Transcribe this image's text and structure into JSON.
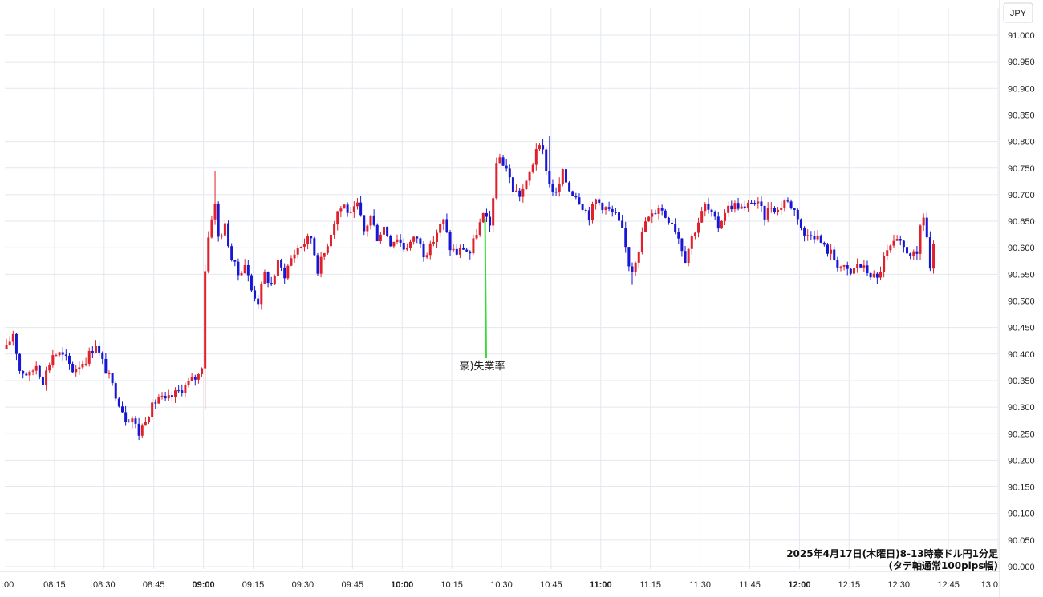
{
  "chart_data": {
    "type": "candlestick",
    "unit_label": "JPY",
    "ylim": [
      90.0,
      91.03
    ],
    "y_ticks": [
      "91.000",
      "90.950",
      "90.900",
      "90.850",
      "90.800",
      "90.750",
      "90.700",
      "90.650",
      "90.600",
      "90.550",
      "90.500",
      "90.450",
      "90.400",
      "90.350",
      "90.300",
      "90.250",
      "90.200",
      "90.150",
      "90.100",
      "90.050",
      "90.000"
    ],
    "x_ticks": [
      {
        "label": ":00",
        "minute": 480,
        "bold": false
      },
      {
        "label": "08:15",
        "minute": 495,
        "bold": false
      },
      {
        "label": "08:30",
        "minute": 510,
        "bold": false
      },
      {
        "label": "08:45",
        "minute": 525,
        "bold": false
      },
      {
        "label": "09:00",
        "minute": 540,
        "bold": true
      },
      {
        "label": "09:15",
        "minute": 555,
        "bold": false
      },
      {
        "label": "09:30",
        "minute": 570,
        "bold": false
      },
      {
        "label": "09:45",
        "minute": 585,
        "bold": false
      },
      {
        "label": "10:00",
        "minute": 600,
        "bold": true
      },
      {
        "label": "10:15",
        "minute": 615,
        "bold": false
      },
      {
        "label": "10:30",
        "minute": 630,
        "bold": false
      },
      {
        "label": "10:45",
        "minute": 645,
        "bold": false
      },
      {
        "label": "11:00",
        "minute": 660,
        "bold": true
      },
      {
        "label": "11:15",
        "minute": 675,
        "bold": false
      },
      {
        "label": "11:30",
        "minute": 690,
        "bold": false
      },
      {
        "label": "11:45",
        "minute": 705,
        "bold": false
      },
      {
        "label": "12:00",
        "minute": 720,
        "bold": true
      },
      {
        "label": "12:15",
        "minute": 735,
        "bold": false
      },
      {
        "label": "12:30",
        "minute": 750,
        "bold": false
      },
      {
        "label": "12:45",
        "minute": 765,
        "bold": false
      },
      {
        "label": "13:0",
        "minute": 780,
        "bold": false
      }
    ],
    "x_range_minutes": [
      480,
      780
    ],
    "anchors": [
      [
        480,
        90.41
      ],
      [
        482,
        90.44
      ],
      [
        484,
        90.37
      ],
      [
        487,
        90.36
      ],
      [
        489,
        90.38
      ],
      [
        491,
        90.35
      ],
      [
        494,
        90.4
      ],
      [
        496,
        90.4
      ],
      [
        498,
        90.39
      ],
      [
        500,
        90.37
      ],
      [
        502,
        90.38
      ],
      [
        504,
        90.39
      ],
      [
        507,
        90.42
      ],
      [
        508,
        90.4
      ],
      [
        510,
        90.37
      ],
      [
        512,
        90.34
      ],
      [
        514,
        90.31
      ],
      [
        516,
        90.28
      ],
      [
        518,
        90.28
      ],
      [
        520,
        90.25
      ],
      [
        522,
        90.28
      ],
      [
        524,
        90.3
      ],
      [
        526,
        90.32
      ],
      [
        528,
        90.31
      ],
      [
        530,
        90.32
      ],
      [
        532,
        90.33
      ],
      [
        534,
        90.34
      ],
      [
        536,
        90.35
      ],
      [
        538,
        90.36
      ],
      [
        539,
        90.38
      ],
      [
        540,
        90.56
      ],
      [
        541,
        90.62
      ],
      [
        542,
        90.66
      ],
      [
        543,
        90.68
      ],
      [
        544,
        90.62
      ],
      [
        546,
        90.64
      ],
      [
        548,
        90.58
      ],
      [
        550,
        90.55
      ],
      [
        552,
        90.57
      ],
      [
        554,
        90.52
      ],
      [
        556,
        90.5
      ],
      [
        558,
        90.55
      ],
      [
        560,
        90.53
      ],
      [
        562,
        90.57
      ],
      [
        564,
        90.55
      ],
      [
        566,
        90.58
      ],
      [
        568,
        90.6
      ],
      [
        570,
        90.61
      ],
      [
        572,
        90.62
      ],
      [
        574,
        90.56
      ],
      [
        576,
        90.59
      ],
      [
        578,
        90.63
      ],
      [
        580,
        90.67
      ],
      [
        582,
        90.68
      ],
      [
        584,
        90.66
      ],
      [
        586,
        90.68
      ],
      [
        588,
        90.63
      ],
      [
        590,
        90.66
      ],
      [
        592,
        90.62
      ],
      [
        594,
        90.64
      ],
      [
        596,
        90.61
      ],
      [
        598,
        90.62
      ],
      [
        600,
        90.6
      ],
      [
        602,
        90.61
      ],
      [
        604,
        90.62
      ],
      [
        606,
        90.59
      ],
      [
        608,
        90.6
      ],
      [
        610,
        90.63
      ],
      [
        612,
        90.65
      ],
      [
        614,
        90.6
      ],
      [
        616,
        90.59
      ],
      [
        618,
        90.6
      ],
      [
        620,
        90.59
      ],
      [
        622,
        90.63
      ],
      [
        624,
        90.66
      ],
      [
        626,
        90.64
      ],
      [
        627,
        90.7
      ],
      [
        628,
        90.75
      ],
      [
        629,
        90.77
      ],
      [
        631,
        90.75
      ],
      [
        633,
        90.71
      ],
      [
        635,
        90.7
      ],
      [
        637,
        90.72
      ],
      [
        639,
        90.76
      ],
      [
        640,
        90.79
      ],
      [
        642,
        90.78
      ],
      [
        644,
        90.72
      ],
      [
        646,
        90.7
      ],
      [
        648,
        90.74
      ],
      [
        650,
        90.71
      ],
      [
        652,
        90.7
      ],
      [
        654,
        90.68
      ],
      [
        656,
        90.66
      ],
      [
        658,
        90.69
      ],
      [
        660,
        90.68
      ],
      [
        662,
        90.67
      ],
      [
        664,
        90.66
      ],
      [
        666,
        90.63
      ],
      [
        668,
        90.57
      ],
      [
        669,
        90.56
      ],
      [
        671,
        90.6
      ],
      [
        673,
        90.65
      ],
      [
        675,
        90.66
      ],
      [
        677,
        90.68
      ],
      [
        679,
        90.66
      ],
      [
        681,
        90.65
      ],
      [
        683,
        90.62
      ],
      [
        685,
        90.58
      ],
      [
        687,
        90.62
      ],
      [
        689,
        90.65
      ],
      [
        691,
        90.68
      ],
      [
        693,
        90.66
      ],
      [
        695,
        90.64
      ],
      [
        697,
        90.67
      ],
      [
        699,
        90.68
      ],
      [
        701,
        90.68
      ],
      [
        703,
        90.67
      ],
      [
        705,
        90.69
      ],
      [
        707,
        90.68
      ],
      [
        709,
        90.66
      ],
      [
        711,
        90.68
      ],
      [
        713,
        90.67
      ],
      [
        715,
        90.69
      ],
      [
        717,
        90.68
      ],
      [
        719,
        90.66
      ],
      [
        721,
        90.62
      ],
      [
        723,
        90.63
      ],
      [
        725,
        90.62
      ],
      [
        727,
        90.6
      ],
      [
        729,
        90.59
      ],
      [
        731,
        90.57
      ],
      [
        733,
        90.56
      ],
      [
        735,
        90.55
      ],
      [
        737,
        90.57
      ],
      [
        739,
        90.56
      ],
      [
        741,
        90.55
      ],
      [
        743,
        90.54
      ],
      [
        745,
        90.58
      ],
      [
        747,
        90.6
      ],
      [
        749,
        90.61
      ],
      [
        751,
        90.6
      ],
      [
        753,
        90.59
      ],
      [
        755,
        90.58
      ],
      [
        756,
        90.64
      ],
      [
        757,
        90.66
      ],
      [
        758,
        90.62
      ],
      [
        759,
        90.56
      ],
      [
        760,
        90.6
      ]
    ],
    "annotations": [
      {
        "text": "豪)失業率",
        "minute": 626,
        "price": 90.655
      }
    ],
    "caption_lines": [
      "2025年4月17日(木曜日)8-13時豪ドル円1分足",
      "(タテ軸通常100pips幅)"
    ],
    "colors": {
      "up": "#e0202b",
      "down": "#1616d4",
      "grid": "#e3e8ee",
      "annotation_line": "#33dd33"
    }
  }
}
